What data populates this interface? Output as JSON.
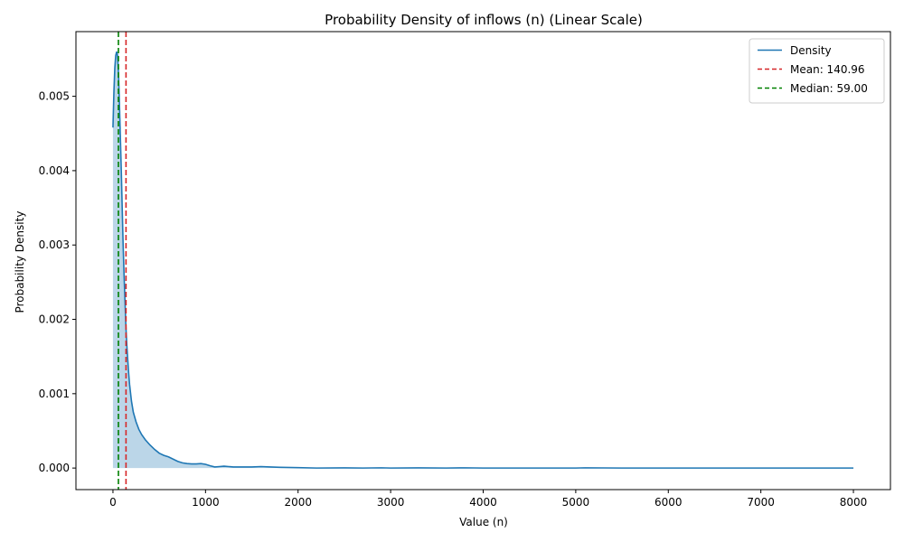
{
  "chart_data": {
    "type": "area",
    "title": "Probability Density of inflows (n) (Linear Scale)",
    "xlabel": "Value (n)",
    "ylabel": "Probability Density",
    "xlim": [
      -400,
      8400
    ],
    "ylim": [
      -0.00029,
      0.00587
    ],
    "xticks": [
      0,
      1000,
      2000,
      3000,
      4000,
      5000,
      6000,
      7000,
      8000
    ],
    "xtick_labels": [
      "0",
      "1000",
      "2000",
      "3000",
      "4000",
      "5000",
      "6000",
      "7000",
      "8000"
    ],
    "yticks": [
      0.0,
      0.001,
      0.002,
      0.003,
      0.004,
      0.005
    ],
    "ytick_labels": [
      "0.000",
      "0.001",
      "0.002",
      "0.003",
      "0.004",
      "0.005"
    ],
    "grid": false,
    "legend_position": "top-right",
    "series": [
      {
        "name": "Density",
        "color": "#1f77b4",
        "fill_color": "#1f77b4",
        "fill_opacity": 0.3,
        "x": [
          0,
          10,
          20,
          30,
          40,
          50,
          60,
          70,
          80,
          90,
          100,
          110,
          120,
          130,
          140,
          150,
          160,
          170,
          180,
          200,
          220,
          250,
          280,
          310,
          350,
          400,
          450,
          500,
          550,
          600,
          650,
          700,
          750,
          800,
          850,
          900,
          950,
          1000,
          1050,
          1100,
          1150,
          1200,
          1250,
          1300,
          1400,
          1500,
          1600,
          1700,
          1800,
          2000,
          2200,
          2500,
          2700,
          2900,
          3000,
          3300,
          3600,
          3800,
          4000,
          4500,
          5000,
          5100,
          5500,
          6000,
          7000,
          8000
        ],
        "y": [
          0.00458,
          0.00505,
          0.00538,
          0.00555,
          0.0056,
          0.00555,
          0.0053,
          0.0049,
          0.00445,
          0.004,
          0.0035,
          0.003,
          0.0026,
          0.00225,
          0.0019,
          0.00165,
          0.00145,
          0.00127,
          0.00112,
          0.0009,
          0.00075,
          0.00062,
          0.00052,
          0.00045,
          0.00038,
          0.00031,
          0.00025,
          0.0002,
          0.00017,
          0.00015,
          0.00012,
          9e-05,
          7e-05,
          6e-05,
          5.5e-05,
          5.5e-05,
          6e-05,
          5e-05,
          3e-05,
          1.5e-05,
          2e-05,
          2.5e-05,
          2e-05,
          1.5e-05,
          1.5e-05,
          1.5e-05,
          2e-05,
          1.5e-05,
          1e-05,
          5e-06,
          0.0,
          2e-06,
          0.0,
          3e-06,
          0.0,
          2e-06,
          0.0,
          3e-06,
          0.0,
          0.0,
          0.0,
          3e-06,
          0.0,
          0.0,
          0.0,
          0.0
        ]
      }
    ],
    "vlines": [
      {
        "label": "Mean: 140.96",
        "x": 140.96,
        "color": "#d62728",
        "dash": "dashed"
      },
      {
        "label": "Median: 59.00",
        "x": 59.0,
        "color": "#008000",
        "dash": "dashed"
      }
    ],
    "legend": {
      "entries": [
        {
          "label": "Density",
          "color": "#1f77b4",
          "style": "solid"
        },
        {
          "label": "Mean: 140.96",
          "color": "#d62728",
          "style": "dashed"
        },
        {
          "label": "Median: 59.00",
          "color": "#008000",
          "style": "dashed"
        }
      ]
    }
  }
}
